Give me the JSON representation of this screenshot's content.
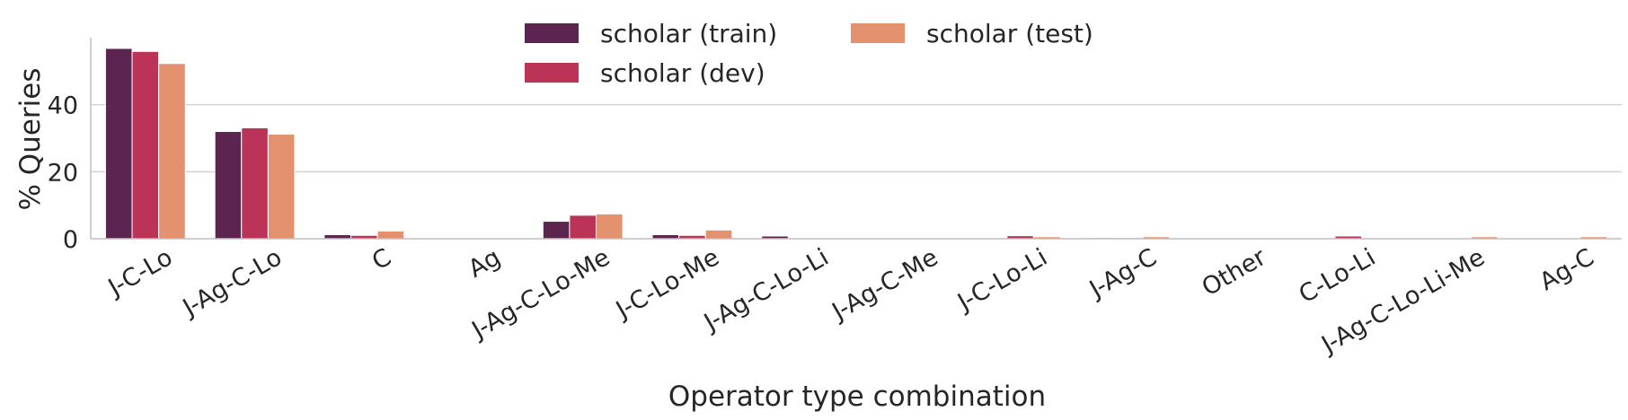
{
  "chart_data": {
    "type": "bar",
    "xlabel": "Operator type combination",
    "ylabel": "% Queries",
    "ylim": [
      0,
      60
    ],
    "yticks": [
      0,
      20,
      40
    ],
    "grid": "horizontal",
    "legend_position": "top-center",
    "categories": [
      "J-C-Lo",
      "J-Ag-C-Lo",
      "C",
      "Ag",
      "J-Ag-C-Lo-Me",
      "J-C-Lo-Me",
      "J-Ag-C-Lo-Li",
      "J-Ag-C-Me",
      "J-C-Lo-Li",
      "J-Ag-C",
      "Other",
      "C-Lo-Li",
      "J-Ag-C-Lo-Li-Me",
      "Ag-C"
    ],
    "series": [
      {
        "name": "scholar (train)",
        "color": "#5b2550",
        "values": [
          56.8,
          32.0,
          1.2,
          0.1,
          5.2,
          1.2,
          0.8,
          0.1,
          0.2,
          0.3,
          0.2,
          0.1,
          0.1,
          0.1
        ]
      },
      {
        "name": "scholar (dev)",
        "color": "#bb3357",
        "values": [
          55.9,
          33.1,
          1.0,
          0.1,
          7.0,
          1.0,
          0.2,
          0.2,
          0.9,
          0.3,
          0.2,
          0.8,
          0.1,
          0.1
        ]
      },
      {
        "name": "scholar (test)",
        "color": "#e4916f",
        "values": [
          52.3,
          31.2,
          2.3,
          0.1,
          7.4,
          2.6,
          0.2,
          0.2,
          0.6,
          0.6,
          0.2,
          0.1,
          0.6,
          0.6
        ]
      }
    ]
  }
}
